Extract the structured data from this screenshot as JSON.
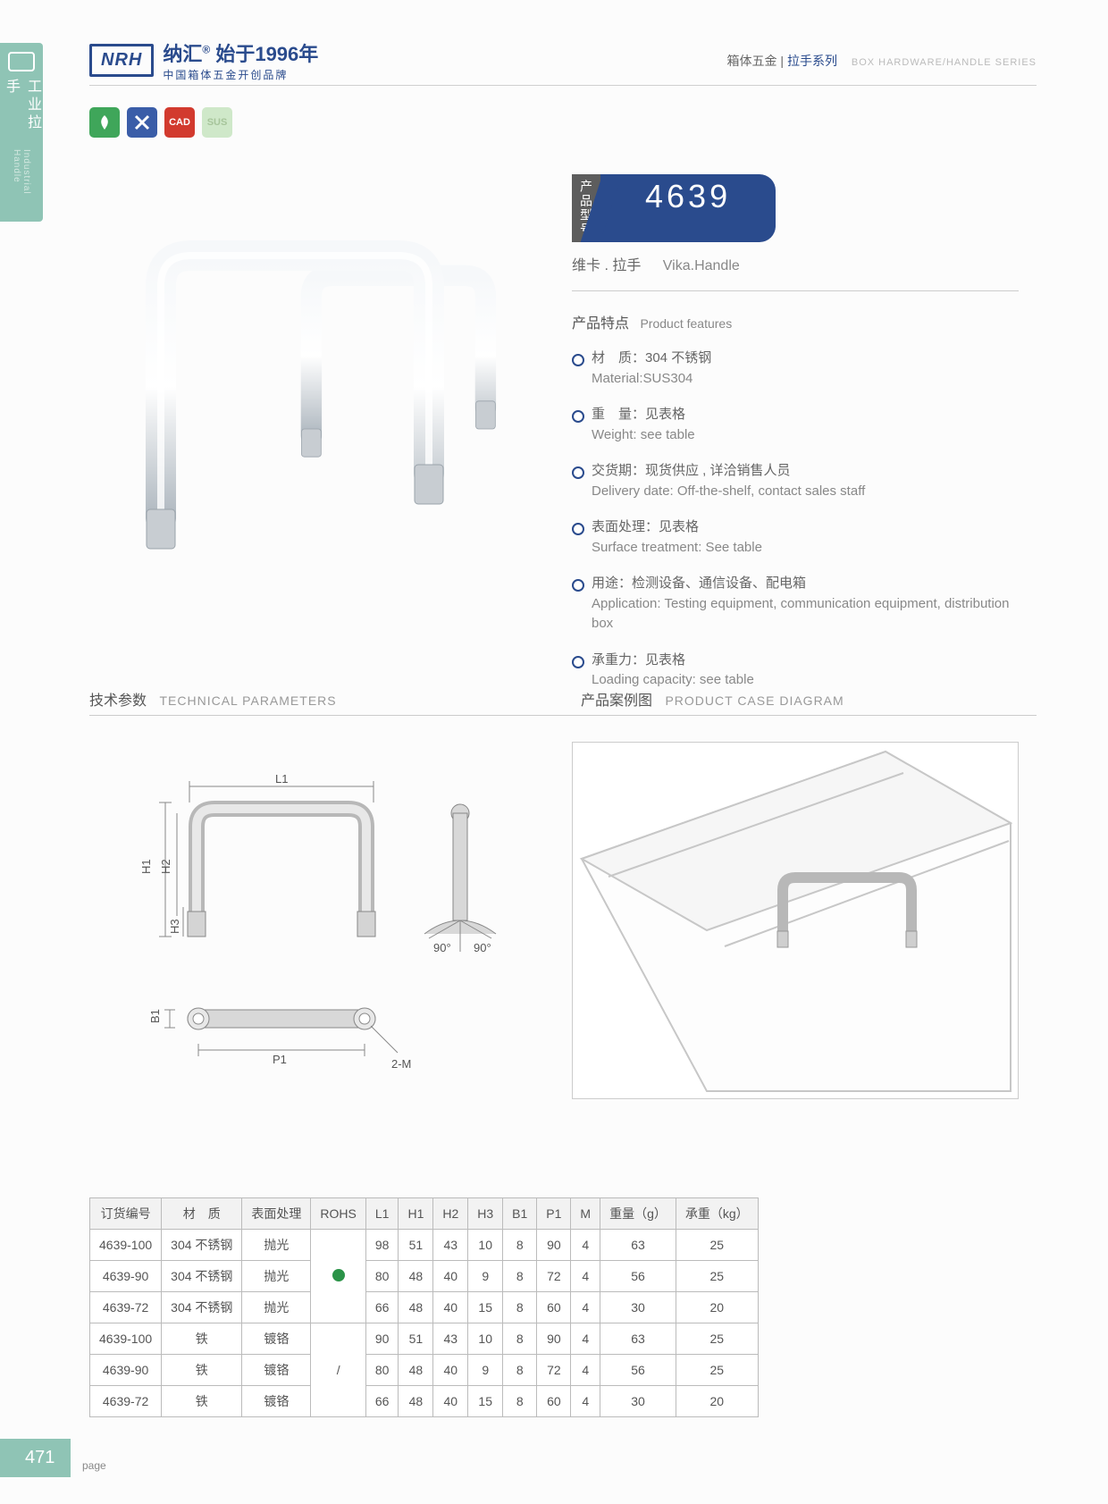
{
  "side_tab": {
    "cn": "工业拉手",
    "en": "Industrial Handle"
  },
  "header": {
    "brand_mark": "NRH",
    "brand_cn": "纳汇",
    "brand_since": "始于1996年",
    "brand_tagline": "中国箱体五金开创品牌",
    "category_cn1": "箱体五金",
    "category_cn2": "拉手系列",
    "category_en": "BOX HARDWARE/HANDLE SERIES"
  },
  "badges": [
    {
      "bg": "#3fa65a",
      "label": ""
    },
    {
      "bg": "#3a5da8",
      "label": ""
    },
    {
      "bg": "#d23a2e",
      "label": "CAD"
    },
    {
      "bg": "#cfe8c9",
      "label": "SUS"
    }
  ],
  "model": {
    "label": "产品型号",
    "number": "4639",
    "name_cn": "维卡 . 拉手",
    "name_en": "Vika.Handle"
  },
  "features_title_cn": "产品特点",
  "features_title_en": "Product features",
  "features": [
    {
      "cn": "材　质：304 不锈钢",
      "en": "Material:SUS304"
    },
    {
      "cn": "重　量：见表格",
      "en": "Weight: see table"
    },
    {
      "cn": "交货期：现货供应 , 详洽销售人员",
      "en": "Delivery date: Off-the-shelf, contact sales staff"
    },
    {
      "cn": "表面处理：见表格",
      "en": "Surface treatment: See table"
    },
    {
      "cn": "用途：检测设备、通信设备、配电箱",
      "en": "Application: Testing equipment, communication equipment, distribution box"
    },
    {
      "cn": "承重力：见表格",
      "en": "Loading capacity: see table"
    }
  ],
  "mid": {
    "tech_cn": "技术参数",
    "tech_en": "TECHNICAL PARAMETERS",
    "case_cn": "产品案例图",
    "case_en": "PRODUCT CASE DIAGRAM"
  },
  "diagram_labels": {
    "L1": "L1",
    "H1": "H1",
    "H2": "H2",
    "H3": "H3",
    "B1": "B1",
    "P1": "P1",
    "M2": "2-M",
    "a90a": "90°",
    "a90b": "90°"
  },
  "table": {
    "columns": [
      "订货编号",
      "材　质",
      "表面处理",
      "ROHS",
      "L1",
      "H1",
      "H2",
      "H3",
      "B1",
      "P1",
      "M",
      "重量（g）",
      "承重（kg）"
    ],
    "rohs_groups": [
      "dot",
      "slash"
    ],
    "rows": [
      [
        "4639-100",
        "304 不锈钢",
        "抛光",
        "98",
        "51",
        "43",
        "10",
        "8",
        "90",
        "4",
        "63",
        "25"
      ],
      [
        "4639-90",
        "304 不锈钢",
        "抛光",
        "80",
        "48",
        "40",
        "9",
        "8",
        "72",
        "4",
        "56",
        "25"
      ],
      [
        "4639-72",
        "304 不锈钢",
        "抛光",
        "66",
        "48",
        "40",
        "15",
        "8",
        "60",
        "4",
        "30",
        "20"
      ],
      [
        "4639-100",
        "铁",
        "镀铬",
        "90",
        "51",
        "43",
        "10",
        "8",
        "90",
        "4",
        "63",
        "25"
      ],
      [
        "4639-90",
        "铁",
        "镀铬",
        "80",
        "48",
        "40",
        "9",
        "8",
        "72",
        "4",
        "56",
        "25"
      ],
      [
        "4639-72",
        "铁",
        "镀铬",
        "66",
        "48",
        "40",
        "15",
        "8",
        "60",
        "4",
        "30",
        "20"
      ]
    ]
  },
  "page": {
    "number": "471",
    "label": "page"
  },
  "colors": {
    "accent": "#2a4b8d",
    "mint": "#8fc4b5",
    "line": "#bfbfbf",
    "metal1": "#f4f6f8",
    "metal2": "#9aa3ab"
  }
}
